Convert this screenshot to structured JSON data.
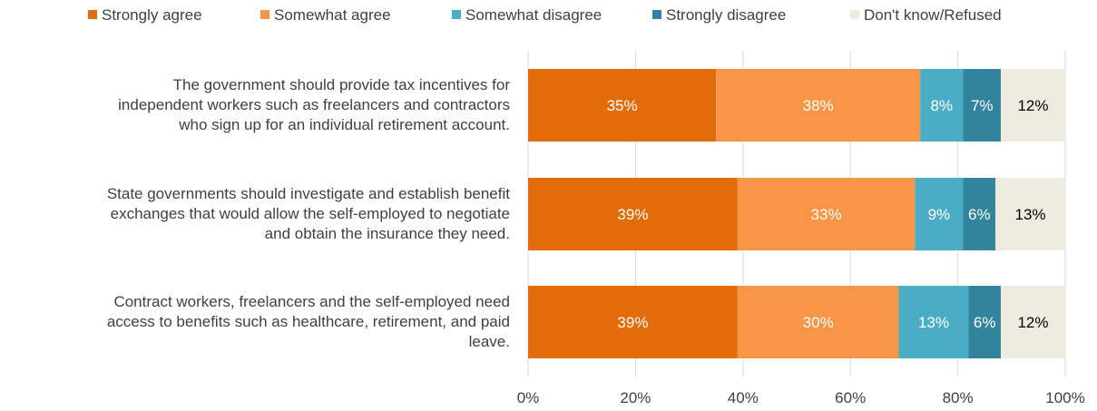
{
  "chart_data": {
    "type": "bar",
    "orientation": "horizontal",
    "stacked": true,
    "categories": [
      "The government should provide tax incentives for independent workers such as freelancers and contractors who sign up for an individual retirement account.",
      "State governments should investigate and establish benefit exchanges that would allow the self-employed to negotiate and obtain the insurance they need.",
      "Contract workers, freelancers and the self-employed need access to benefits such as healthcare, retirement, and paid leave."
    ],
    "category_lines": [
      [
        "The government should provide tax incentives for",
        "independent workers such as freelancers and contractors",
        "who sign up for an individual retirement account."
      ],
      [
        "State governments should investigate and establish benefit",
        "exchanges that would allow the self-employed to negotiate",
        "and obtain the insurance they need."
      ],
      [
        "Contract workers, freelancers and the self-employed need",
        "access to benefits such as healthcare, retirement, and paid",
        "leave."
      ]
    ],
    "series": [
      {
        "name": "Strongly agree",
        "color": "#E36C0A",
        "values": [
          35,
          39,
          39
        ],
        "labels": [
          "35%",
          "39%",
          "39%"
        ],
        "label_color": "#ffffff"
      },
      {
        "name": "Somewhat agree",
        "color": "#F79646",
        "values": [
          38,
          33,
          30
        ],
        "labels": [
          "38%",
          "33%",
          "30%"
        ],
        "label_color": "#ffffff"
      },
      {
        "name": "Somewhat disagree",
        "color": "#4BACC6",
        "values": [
          8,
          9,
          13
        ],
        "labels": [
          "8%",
          "9%",
          "13%"
        ],
        "label_color": "#ffffff"
      },
      {
        "name": "Strongly disagree",
        "color": "#31849B",
        "values": [
          7,
          6,
          6
        ],
        "labels": [
          "7%",
          "6%",
          "6%"
        ],
        "label_color": "#ffffff"
      },
      {
        "name": "Don't know/Refused",
        "color": "#EEECE1",
        "values": [
          12,
          13,
          12
        ],
        "labels": [
          "12%",
          "13%",
          "12%"
        ],
        "label_color": "#000000"
      }
    ],
    "xlim": [
      0,
      100
    ],
    "x_ticks": [
      0,
      20,
      40,
      60,
      80,
      100
    ],
    "x_tick_labels": [
      "0%",
      "20%",
      "40%",
      "60%",
      "80%",
      "100%"
    ],
    "grid": true,
    "legend_position": "top"
  }
}
